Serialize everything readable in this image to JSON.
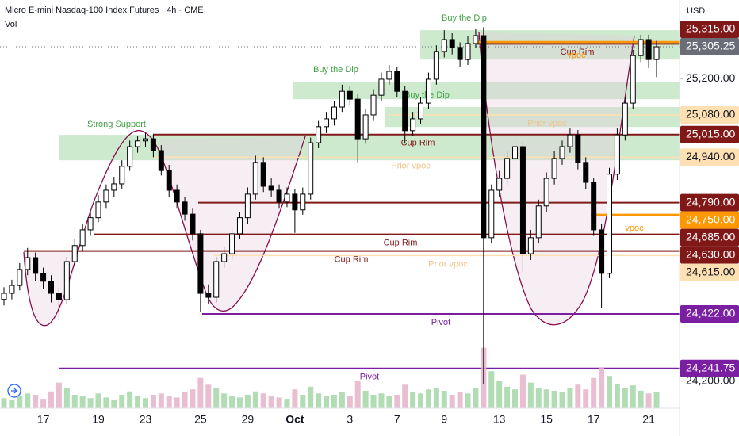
{
  "chart_data": {
    "type": "candlestick",
    "title": "Micro E-mini Nasdaq-100 Index Futures · 4h · CME",
    "volume_label": "Vol",
    "currency": "USD",
    "categories": [
      null,
      null,
      null,
      null,
      null,
      "17",
      null,
      null,
      null,
      null,
      null,
      null,
      "19",
      null,
      null,
      null,
      null,
      null,
      "23",
      null,
      null,
      null,
      null,
      null,
      null,
      "25",
      null,
      null,
      null,
      null,
      null,
      "29",
      null,
      null,
      null,
      null,
      null,
      "Oct",
      null,
      null,
      null,
      null,
      null,
      null,
      "3",
      null,
      null,
      null,
      null,
      null,
      "7",
      null,
      null,
      null,
      null,
      null,
      "9",
      null,
      null,
      null,
      null,
      null,
      null,
      "13",
      null,
      null,
      null,
      null,
      null,
      "15",
      null,
      null,
      null,
      null,
      null,
      "17",
      null,
      null,
      null,
      null,
      null,
      null,
      "21",
      null
    ],
    "open": [
      24470,
      24490,
      24516,
      24569,
      24608,
      24556,
      24530,
      24490,
      24469,
      24595,
      24648,
      24700,
      24740,
      24792,
      24831,
      24852,
      24910,
      24975,
      24994,
      25001,
      24962,
      24896,
      24831,
      24792,
      24752,
      24687,
      24490,
      24477,
      24595,
      24621,
      24687,
      24740,
      24818,
      24923,
      24844,
      24831,
      24792,
      24818,
      24766,
      24818,
      24988,
      25041,
      25067,
      25106,
      25158,
      25132,
      25001,
      25080,
      25145,
      25198,
      25224,
      25158,
      25028,
      25067,
      25119,
      25198,
      25290,
      25329,
      25303,
      25263,
      25316,
      25342,
      24674,
      24831,
      24870,
      24936,
      24975,
      24621,
      24674,
      24779,
      24870,
      24936,
      24975,
      25014,
      24923,
      24857,
      24700,
      24556,
      24884,
      25014,
      25119,
      25276,
      25329,
      25263
    ],
    "high": [
      24510,
      24535,
      24590,
      24640,
      24625,
      24575,
      24550,
      24510,
      24610,
      24670,
      24720,
      24760,
      24815,
      24850,
      24875,
      24930,
      24995,
      25010,
      25020,
      25015,
      24980,
      24915,
      24850,
      24810,
      24770,
      24700,
      24520,
      24610,
      24645,
      24705,
      24760,
      24840,
      24945,
      24940,
      24870,
      24850,
      24840,
      24835,
      24840,
      25005,
      25060,
      25090,
      25125,
      25180,
      25175,
      25150,
      25100,
      25165,
      25220,
      25245,
      25240,
      25175,
      25090,
      25140,
      25220,
      25310,
      25360,
      25350,
      25320,
      25340,
      25365,
      25370,
      24850,
      24895,
      24960,
      25000,
      24990,
      24700,
      24800,
      24890,
      24960,
      24995,
      25035,
      25030,
      24940,
      24870,
      24720,
      24905,
      25035,
      25140,
      25295,
      25345,
      25345,
      25325
    ],
    "low": [
      24450,
      24470,
      24500,
      24550,
      24530,
      24505,
      24460,
      24400,
      24455,
      24580,
      24630,
      24680,
      24725,
      24770,
      24810,
      24835,
      24895,
      24955,
      24975,
      24940,
      24880,
      24810,
      24770,
      24730,
      24665,
      24430,
      24455,
      24460,
      24575,
      24600,
      24670,
      24720,
      24800,
      24825,
      24810,
      24770,
      24775,
      24690,
      24750,
      24800,
      24970,
      25020,
      25045,
      25090,
      25110,
      24920,
      24985,
      25060,
      25125,
      25180,
      25140,
      24985,
      25010,
      25050,
      25100,
      25180,
      25270,
      25280,
      25240,
      25245,
      25300,
      24190,
      24655,
      24810,
      24850,
      24915,
      24560,
      24600,
      24655,
      24760,
      24850,
      24915,
      24955,
      24900,
      24835,
      24680,
      24440,
      24540,
      24865,
      24995,
      25100,
      25255,
      25235,
      25205
    ],
    "close": [
      24490,
      24516,
      24569,
      24608,
      24556,
      24530,
      24490,
      24469,
      24595,
      24648,
      24700,
      24740,
      24792,
      24831,
      24852,
      24910,
      24975,
      24994,
      25001,
      24962,
      24896,
      24831,
      24792,
      24752,
      24687,
      24490,
      24477,
      24595,
      24621,
      24687,
      24740,
      24818,
      24923,
      24844,
      24831,
      24792,
      24818,
      24766,
      24818,
      24988,
      25041,
      25067,
      25106,
      25158,
      25132,
      25001,
      25080,
      25145,
      25198,
      25224,
      25158,
      25028,
      25067,
      25119,
      25198,
      25290,
      25329,
      25303,
      25263,
      25316,
      25342,
      24674,
      24831,
      24870,
      24936,
      24975,
      24621,
      24674,
      24779,
      24870,
      24936,
      24975,
      25014,
      24923,
      24857,
      24700,
      24556,
      24884,
      25014,
      25119,
      25276,
      25329,
      25263,
      25305.25
    ],
    "volume": [
      15,
      12,
      18,
      22,
      20,
      14,
      25,
      38,
      30,
      20,
      18,
      15,
      22,
      16,
      12,
      20,
      25,
      18,
      15,
      20,
      22,
      18,
      16,
      24,
      28,
      45,
      35,
      30,
      22,
      18,
      16,
      20,
      25,
      22,
      18,
      16,
      14,
      28,
      20,
      32,
      22,
      18,
      20,
      24,
      18,
      40,
      26,
      20,
      22,
      18,
      20,
      35,
      24,
      22,
      28,
      30,
      26,
      20,
      24,
      22,
      30,
      90,
      55,
      40,
      32,
      28,
      50,
      38,
      30,
      28,
      26,
      24,
      30,
      35,
      28,
      45,
      60,
      48,
      36,
      30,
      34,
      26,
      22,
      24
    ],
    "up_color": "#ffffff",
    "down_color": "#000000",
    "volume_up_color": "#a5d6a7",
    "volume_down_color": "#e6b3c9",
    "ylim": [
      24110,
      25460
    ],
    "yticks": [
      {
        "value": 25200,
        "label": "25,200.00"
      },
      {
        "value": 24200,
        "label": "24,200.00"
      }
    ],
    "volume_ylim": [
      0,
      100
    ],
    "last_price": {
      "value": 25305.25,
      "label": "25,305.25"
    },
    "last_color": "#6a6d78",
    "zones": [
      {
        "label": "Strong Support",
        "range": [
          24930,
          25014
        ],
        "color": "#4caf50"
      },
      {
        "label": "Buy the Dip",
        "range": [
          25132,
          25190
        ],
        "color": "#4caf50"
      },
      {
        "label": "Buy the Dip",
        "range": [
          25040,
          25106
        ],
        "color": "#4caf50"
      },
      {
        "label": "Buy the Dip",
        "range": [
          25263,
          25360
        ],
        "color": "#4caf50"
      }
    ],
    "levels": [
      {
        "label": "Cup Rim",
        "price": {
          "value": 25315,
          "label": "25,315.00"
        },
        "color": "#801818"
      },
      {
        "label": "vpoc",
        "price": 25321,
        "color": "#ff9800"
      },
      {
        "label": "Prior vpoc",
        "price": {
          "value": 25080,
          "label": "25,080.00"
        },
        "color": "#ffe0b2"
      },
      {
        "label": "Cup Rim",
        "price": {
          "value": 25015,
          "label": "25,015.00"
        },
        "color": "#801818"
      },
      {
        "label": "Prior vpoc",
        "price": {
          "value": 24940,
          "label": "24,940.00"
        },
        "color": "#ffe0b2"
      },
      {
        "price": {
          "value": 24790,
          "label": "24,790.00"
        },
        "color": "#801818"
      },
      {
        "label": "vpoc",
        "price": {
          "value": 24750,
          "label": "24,750.00"
        },
        "color": "#ff9800"
      },
      {
        "label": "Cup Rim",
        "price": {
          "value": 24685,
          "label": "24,685.00"
        },
        "color": "#801818"
      },
      {
        "label": "Cup Rim",
        "price": {
          "value": 24630,
          "label": "24,630.00"
        },
        "color": "#801818"
      },
      {
        "label": "Prior vpoc",
        "price": {
          "value": 24615,
          "label": "24,615.00"
        },
        "color": "#ffe0b2"
      },
      {
        "label": "Pivot",
        "price": {
          "value": 24422,
          "label": "24,422.00"
        },
        "color": "#7b1fa2"
      },
      {
        "label": "Pivot",
        "price": {
          "value": 24241.75,
          "label": "24,241.75"
        },
        "color": "#7b1fa2"
      }
    ]
  }
}
